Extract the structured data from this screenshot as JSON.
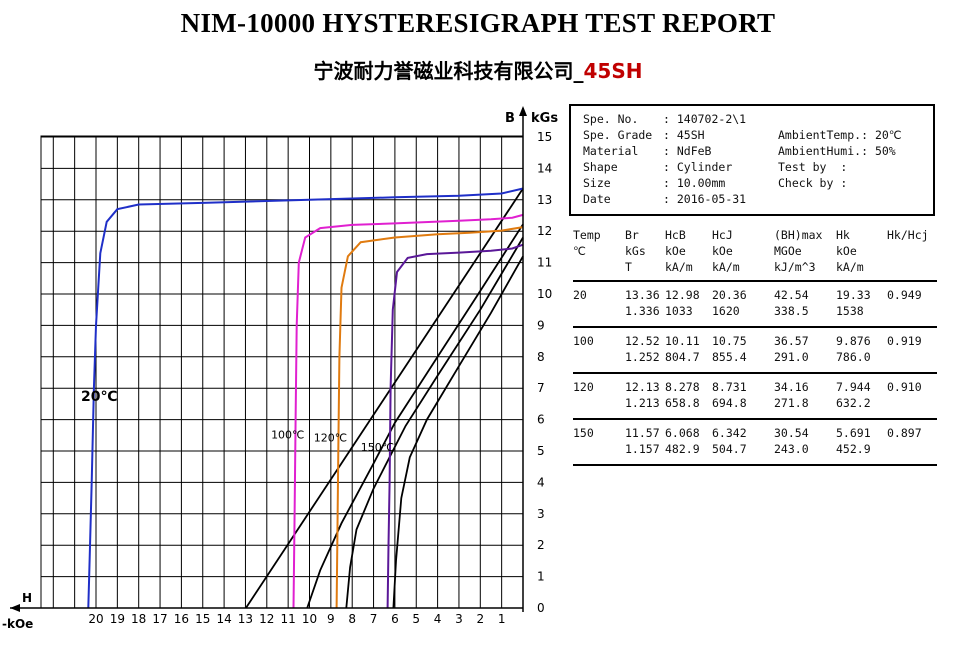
{
  "title": "NIM-10000 HYSTERESIGRAPH  TEST REPORT",
  "subtitle_company": "宁波耐力誉磁业科技有限公司_",
  "subtitle_grade": "45SH",
  "info": {
    "spe_no_label": "Spe. No.",
    "spe_no": "140702-2\\1",
    "spe_grade_label": "Spe. Grade",
    "spe_grade": "45SH",
    "material_label": "Material",
    "material": "NdFeB",
    "shape_label": "Shape",
    "shape": "Cylinder",
    "size_label": "Size",
    "size": "10.00mm",
    "date_label": "Date",
    "date": "2016-05-31",
    "ambient_temp_label": "AmbientTemp.",
    "ambient_temp": "20℃",
    "ambient_humi_label": "AmbientHumi.",
    "ambient_humi": "50%",
    "test_by_label": "Test by",
    "test_by": "",
    "check_by_label": "Check by",
    "check_by": ""
  },
  "table": {
    "headers": [
      [
        "Temp",
        "℃",
        ""
      ],
      [
        "Br",
        "kGs",
        "T"
      ],
      [
        "HcB",
        "kOe",
        "kA/m"
      ],
      [
        "HcJ",
        "kOe",
        "kA/m"
      ],
      [
        "(BH)max",
        "MGOe",
        "kJ/m^3"
      ],
      [
        "Hk",
        "kOe",
        "kA/m"
      ],
      [
        "Hk/Hcj",
        "",
        ""
      ]
    ],
    "rows": [
      {
        "temp": "20",
        "line1": [
          "13.36",
          "12.98",
          "20.36",
          "42.54",
          "19.33",
          "0.949"
        ],
        "line2": [
          "1.336",
          "1033",
          "1620",
          "338.5",
          "1538"
        ]
      },
      {
        "temp": "100",
        "line1": [
          "12.52",
          "10.11",
          "10.75",
          "36.57",
          "9.876",
          "0.919"
        ],
        "line2": [
          "1.252",
          "804.7",
          "855.4",
          "291.0",
          "786.0"
        ]
      },
      {
        "temp": "120",
        "line1": [
          "12.13",
          "8.278",
          "8.731",
          "34.16",
          "7.944",
          "0.910"
        ],
        "line2": [
          "1.213",
          "658.8",
          "694.8",
          "271.8",
          "632.2"
        ]
      },
      {
        "temp": "150",
        "line1": [
          "11.57",
          "6.068",
          "6.342",
          "30.54",
          "5.691",
          "0.897"
        ],
        "line2": [
          "1.157",
          "482.9",
          "504.7",
          "243.0",
          "452.9"
        ]
      }
    ]
  },
  "chart_data": {
    "type": "line",
    "title": "",
    "xlabel": "H\n-kOe",
    "ylabel": "B  kGs",
    "xlim": [
      21.5,
      0
    ],
    "ylim": [
      0,
      15.5
    ],
    "x_tick_labels": [
      "20",
      "19",
      "18",
      "17",
      "16",
      "15",
      "14",
      "13",
      "12",
      "11",
      "10",
      "9",
      "8",
      "7",
      "6",
      "5",
      "4",
      "3",
      "2",
      "1"
    ],
    "y_tick_labels": [
      "0",
      "1",
      "2",
      "3",
      "4",
      "5",
      "6",
      "7",
      "8",
      "9",
      "10",
      "11",
      "12",
      "13",
      "14",
      "15"
    ],
    "grid": true,
    "series": [
      {
        "name": "20℃",
        "color": "#1f2fc8",
        "points": [
          [
            0,
            13.36
          ],
          [
            1,
            13.2
          ],
          [
            3,
            13.13
          ],
          [
            6,
            13.08
          ],
          [
            10,
            13.0
          ],
          [
            15,
            12.9
          ],
          [
            18,
            12.85
          ],
          [
            19,
            12.7
          ],
          [
            19.5,
            12.3
          ],
          [
            19.8,
            11.3
          ],
          [
            20.0,
            9.0
          ],
          [
            20.1,
            7.0
          ],
          [
            20.2,
            4.0
          ],
          [
            20.3,
            1.5
          ],
          [
            20.36,
            0
          ]
        ]
      },
      {
        "name": "100℃",
        "color": "#e020d0",
        "points": [
          [
            0,
            12.52
          ],
          [
            0.5,
            12.43
          ],
          [
            1.5,
            12.38
          ],
          [
            3,
            12.33
          ],
          [
            6,
            12.25
          ],
          [
            8,
            12.2
          ],
          [
            9.5,
            12.1
          ],
          [
            10.2,
            11.8
          ],
          [
            10.5,
            11.0
          ],
          [
            10.6,
            9.0
          ],
          [
            10.65,
            6.0
          ],
          [
            10.7,
            3.0
          ],
          [
            10.75,
            0
          ]
        ]
      },
      {
        "name": "120℃",
        "color": "#e07b10",
        "points": [
          [
            0,
            12.13
          ],
          [
            1,
            12.02
          ],
          [
            2.5,
            11.95
          ],
          [
            4,
            11.9
          ],
          [
            6,
            11.8
          ],
          [
            7.6,
            11.65
          ],
          [
            8.2,
            11.2
          ],
          [
            8.5,
            10.2
          ],
          [
            8.6,
            8.0
          ],
          [
            8.65,
            5.0
          ],
          [
            8.7,
            2.0
          ],
          [
            8.731,
            0
          ]
        ]
      },
      {
        "name": "150℃",
        "color": "#5a1898",
        "points": [
          [
            0,
            11.57
          ],
          [
            0.5,
            11.45
          ],
          [
            1.5,
            11.38
          ],
          [
            3,
            11.32
          ],
          [
            4.5,
            11.27
          ],
          [
            5.4,
            11.15
          ],
          [
            5.9,
            10.7
          ],
          [
            6.1,
            9.5
          ],
          [
            6.2,
            7.0
          ],
          [
            6.25,
            4.0
          ],
          [
            6.3,
            2.0
          ],
          [
            6.342,
            0
          ]
        ]
      }
    ],
    "load_lines": [
      {
        "color": "#000000",
        "points": [
          [
            12.98,
            0
          ],
          [
            0,
            13.36
          ]
        ]
      },
      {
        "color": "#000000",
        "points": [
          [
            10.11,
            0
          ],
          [
            9.5,
            1.2
          ],
          [
            8.5,
            2.7
          ],
          [
            7.0,
            4.6
          ],
          [
            6.0,
            5.9
          ],
          [
            4.0,
            8.0
          ],
          [
            2.0,
            10.1
          ],
          [
            0,
            12.22
          ]
        ]
      },
      {
        "color": "#000000",
        "points": [
          [
            8.278,
            0
          ],
          [
            8.1,
            1.3
          ],
          [
            7.8,
            2.5
          ],
          [
            7.0,
            3.8
          ],
          [
            5.5,
            5.8
          ],
          [
            4.0,
            7.4
          ],
          [
            2.0,
            9.5
          ],
          [
            0,
            11.8
          ]
        ]
      },
      {
        "color": "#000000",
        "points": [
          [
            6.068,
            0
          ],
          [
            5.95,
            1.5
          ],
          [
            5.7,
            3.5
          ],
          [
            5.3,
            4.8
          ],
          [
            4.5,
            6.0
          ],
          [
            3.0,
            7.7
          ],
          [
            1.5,
            9.4
          ],
          [
            0,
            11.2
          ]
        ]
      }
    ],
    "annotations": [
      {
        "text": "20℃",
        "x": 20.7,
        "y": 6.6
      },
      {
        "text": "100℃",
        "x": 11.8,
        "y": 5.4
      },
      {
        "text": "120℃",
        "x": 9.8,
        "y": 5.3
      },
      {
        "text": "150℃",
        "x": 7.6,
        "y": 5.0
      }
    ]
  }
}
